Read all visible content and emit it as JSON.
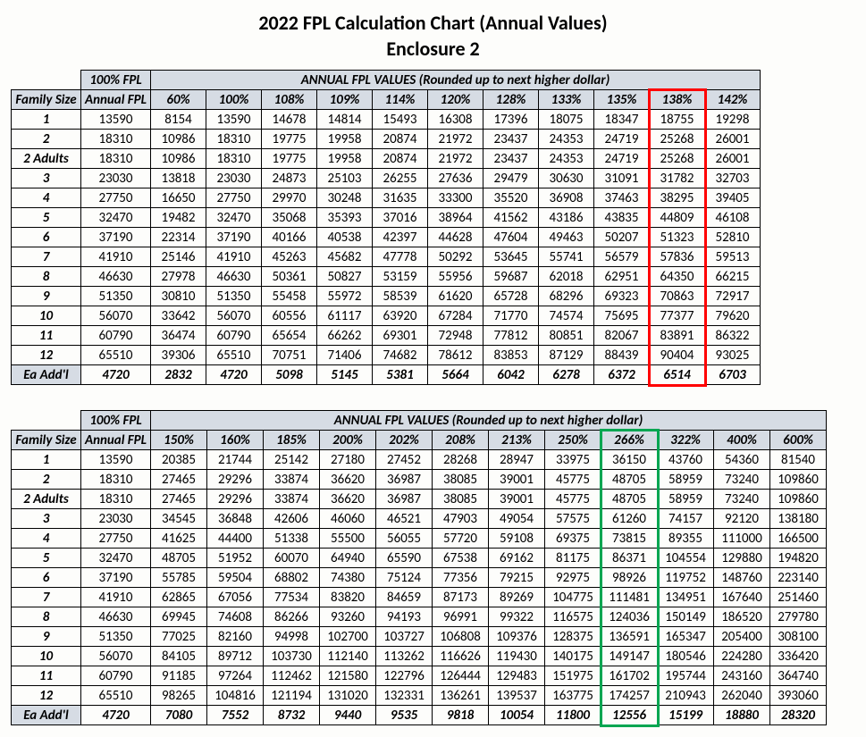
{
  "title": "2022 FPL Calculation Chart (Annual Values)",
  "subtitle": "Enclosure 2",
  "shared": {
    "corner100": "100% FPL",
    "annualHeader": "ANNUAL FPL VALUES (Rounded up to next higher dollar)",
    "familySize": "Family Size",
    "annualFpl": "Annual FPL",
    "eachAddl": "Ea Add'l"
  },
  "highlight": {
    "red": "#ff0000",
    "green": "#00a651"
  },
  "rowLabels": [
    "1",
    "2",
    "2 Adults",
    "3",
    "4",
    "5",
    "6",
    "7",
    "8",
    "9",
    "10",
    "11",
    "12"
  ],
  "annualFplCol": [
    "13590",
    "18310",
    "18310",
    "23030",
    "27750",
    "32470",
    "37190",
    "41910",
    "46630",
    "51350",
    "56070",
    "60790",
    "65510"
  ],
  "annualFplAddl": "4720",
  "table1": {
    "percents": [
      "60%",
      "100%",
      "108%",
      "109%",
      "114%",
      "120%",
      "128%",
      "133%",
      "135%",
      "138%",
      "142%"
    ],
    "rows": [
      [
        "8154",
        "13590",
        "14678",
        "14814",
        "15493",
        "16308",
        "17396",
        "18075",
        "18347",
        "18755",
        "19298"
      ],
      [
        "10986",
        "18310",
        "19775",
        "19958",
        "20874",
        "21972",
        "23437",
        "24353",
        "24719",
        "25268",
        "26001"
      ],
      [
        "10986",
        "18310",
        "19775",
        "19958",
        "20874",
        "21972",
        "23437",
        "24353",
        "24719",
        "25268",
        "26001"
      ],
      [
        "13818",
        "23030",
        "24873",
        "25103",
        "26255",
        "27636",
        "29479",
        "30630",
        "31091",
        "31782",
        "32703"
      ],
      [
        "16650",
        "27750",
        "29970",
        "30248",
        "31635",
        "33300",
        "35520",
        "36908",
        "37463",
        "38295",
        "39405"
      ],
      [
        "19482",
        "32470",
        "35068",
        "35393",
        "37016",
        "38964",
        "41562",
        "43186",
        "43835",
        "44809",
        "46108"
      ],
      [
        "22314",
        "37190",
        "40166",
        "40538",
        "42397",
        "44628",
        "47604",
        "49463",
        "50207",
        "51323",
        "52810"
      ],
      [
        "25146",
        "41910",
        "45263",
        "45682",
        "47778",
        "50292",
        "53645",
        "55741",
        "56579",
        "57836",
        "59513"
      ],
      [
        "27978",
        "46630",
        "50361",
        "50827",
        "53159",
        "55956",
        "59687",
        "62018",
        "62951",
        "64350",
        "66215"
      ],
      [
        "30810",
        "51350",
        "55458",
        "55972",
        "58539",
        "61620",
        "65728",
        "68296",
        "69323",
        "70863",
        "72917"
      ],
      [
        "33642",
        "56070",
        "60556",
        "61117",
        "63920",
        "67284",
        "71770",
        "74574",
        "75695",
        "77377",
        "79620"
      ],
      [
        "36474",
        "60790",
        "65654",
        "66262",
        "69301",
        "72948",
        "77812",
        "80851",
        "82067",
        "83891",
        "86322"
      ],
      [
        "39306",
        "65510",
        "70751",
        "71406",
        "74682",
        "78612",
        "83853",
        "87129",
        "88439",
        "90404",
        "93025"
      ]
    ],
    "addl": [
      "2832",
      "4720",
      "5098",
      "5145",
      "5381",
      "5664",
      "6042",
      "6278",
      "6372",
      "6514",
      "6703"
    ],
    "highlightColIndex": 9
  },
  "table2": {
    "percents": [
      "150%",
      "160%",
      "185%",
      "200%",
      "202%",
      "208%",
      "213%",
      "250%",
      "266%",
      "322%",
      "400%",
      "600%"
    ],
    "rows": [
      [
        "20385",
        "21744",
        "25142",
        "27180",
        "27452",
        "28268",
        "28947",
        "33975",
        "36150",
        "43760",
        "54360",
        "81540"
      ],
      [
        "27465",
        "29296",
        "33874",
        "36620",
        "36987",
        "38085",
        "39001",
        "45775",
        "48705",
        "58959",
        "73240",
        "109860"
      ],
      [
        "27465",
        "29296",
        "33874",
        "36620",
        "36987",
        "38085",
        "39001",
        "45775",
        "48705",
        "58959",
        "73240",
        "109860"
      ],
      [
        "34545",
        "36848",
        "42606",
        "46060",
        "46521",
        "47903",
        "49054",
        "57575",
        "61260",
        "74157",
        "92120",
        "138180"
      ],
      [
        "41625",
        "44400",
        "51338",
        "55500",
        "56055",
        "57720",
        "59108",
        "69375",
        "73815",
        "89355",
        "111000",
        "166500"
      ],
      [
        "48705",
        "51952",
        "60070",
        "64940",
        "65590",
        "67538",
        "69162",
        "81175",
        "86371",
        "104554",
        "129880",
        "194820"
      ],
      [
        "55785",
        "59504",
        "68802",
        "74380",
        "75124",
        "77356",
        "79215",
        "92975",
        "98926",
        "119752",
        "148760",
        "223140"
      ],
      [
        "62865",
        "67056",
        "77534",
        "83820",
        "84659",
        "87173",
        "89269",
        "104775",
        "111481",
        "134951",
        "167640",
        "251460"
      ],
      [
        "69945",
        "74608",
        "86266",
        "93260",
        "94193",
        "96991",
        "99322",
        "116575",
        "124036",
        "150149",
        "186520",
        "279780"
      ],
      [
        "77025",
        "82160",
        "94998",
        "102700",
        "103727",
        "106808",
        "109376",
        "128375",
        "136591",
        "165347",
        "205400",
        "308100"
      ],
      [
        "84105",
        "89712",
        "103730",
        "112140",
        "113262",
        "116626",
        "119430",
        "140175",
        "149147",
        "180546",
        "224280",
        "336420"
      ],
      [
        "91185",
        "97264",
        "112462",
        "121580",
        "122796",
        "126444",
        "129483",
        "151975",
        "161702",
        "195744",
        "243160",
        "364740"
      ],
      [
        "98265",
        "104816",
        "121194",
        "131020",
        "132331",
        "136261",
        "139537",
        "163775",
        "174257",
        "210943",
        "262040",
        "393060"
      ]
    ],
    "addl": [
      "7080",
      "7552",
      "8732",
      "9440",
      "9535",
      "9818",
      "10054",
      "11800",
      "12556",
      "15199",
      "18880",
      "28320"
    ],
    "highlightColIndex": 8
  }
}
